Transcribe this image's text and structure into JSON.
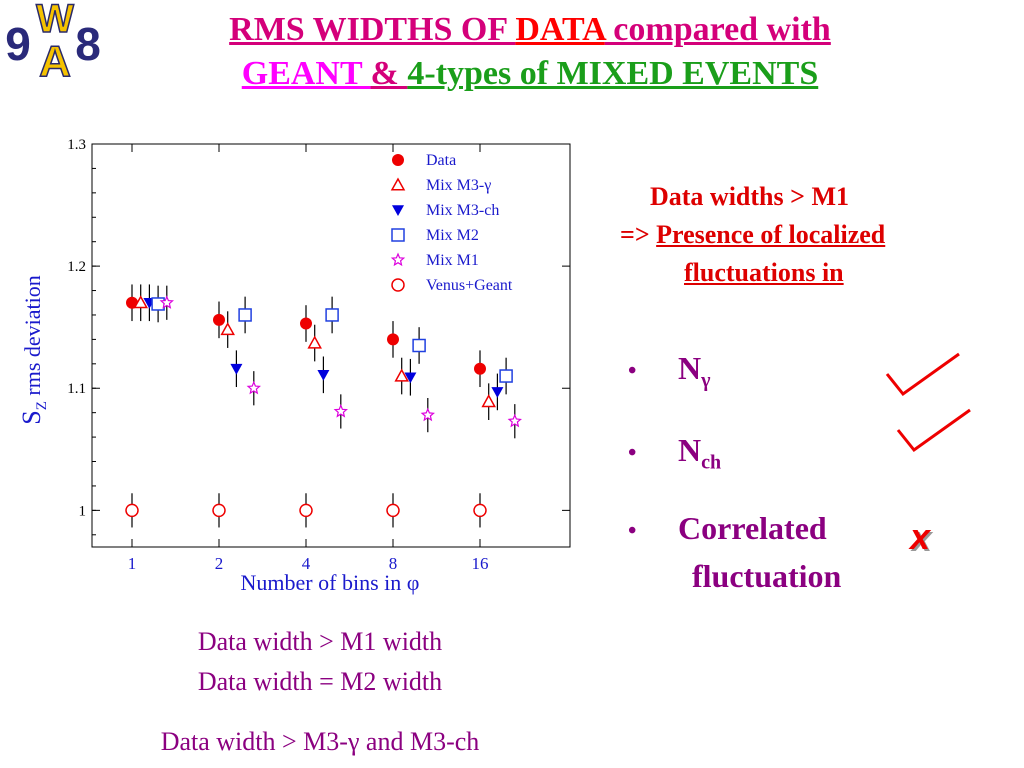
{
  "logo": {
    "letters": [
      "W",
      "9",
      "A",
      "8"
    ]
  },
  "title": {
    "line1": [
      {
        "text": "RMS WIDTHS  OF ",
        "color": "#d4007a"
      },
      {
        "text": "DATA",
        "color": "#ff0000"
      },
      {
        "text": " compared with",
        "color": "#d4007a"
      }
    ],
    "line2": [
      {
        "text": "GEANT ",
        "color": "#ff00ff"
      },
      {
        "text": "& ",
        "color": "#d4007a"
      },
      {
        "text": "4-types of MIXED EVENTS",
        "color": "#1a9e1a"
      }
    ]
  },
  "chart_data": {
    "type": "scatter",
    "categories": [
      "1",
      "2",
      "4",
      "8",
      "16"
    ],
    "ylabel_main": "S",
    "ylabel_sub": "Z",
    "ylabel_rest": " rms deviation",
    "xlabel": "Number of bins in  φ",
    "ylim": [
      0.97,
      1.3
    ],
    "yticks": [
      1,
      1.1,
      1.2,
      1.3
    ],
    "ytick_labels": [
      "1",
      "1.1",
      "1.2",
      "1.3"
    ],
    "legend_position": "top-right",
    "series": [
      {
        "name": "Data",
        "marker": "filled-circle",
        "color": "#ee0000",
        "offset": 0.0,
        "values": [
          1.17,
          1.156,
          1.153,
          1.14,
          1.116
        ],
        "err": [
          0.015,
          0.015,
          0.015,
          0.015,
          0.015
        ]
      },
      {
        "name": "Mix M3-γ",
        "marker": "open-triangle-up",
        "color": "#ee0000",
        "offset": 0.1,
        "values": [
          1.17,
          1.148,
          1.137,
          1.11,
          1.089
        ],
        "err": [
          0.015,
          0.015,
          0.015,
          0.015,
          0.015
        ]
      },
      {
        "name": "Mix M3-ch",
        "marker": "filled-triangle-down",
        "color": "#0000dd",
        "offset": 0.2,
        "values": [
          1.17,
          1.116,
          1.111,
          1.109,
          1.097
        ],
        "err": [
          0.015,
          0.015,
          0.015,
          0.015,
          0.015
        ]
      },
      {
        "name": "Mix M2",
        "marker": "open-square",
        "color": "#2040e0",
        "offset": 0.3,
        "values": [
          1.169,
          1.16,
          1.16,
          1.135,
          1.11
        ],
        "err": [
          0.015,
          0.015,
          0.015,
          0.015,
          0.015
        ]
      },
      {
        "name": "Mix M1",
        "marker": "open-star",
        "color": "#dd00dd",
        "offset": 0.4,
        "values": [
          1.17,
          1.1,
          1.081,
          1.078,
          1.073
        ],
        "err": [
          0.014,
          0.014,
          0.014,
          0.014,
          0.014
        ]
      },
      {
        "name": "Venus+Geant",
        "marker": "open-circle",
        "color": "#ee0000",
        "offset": 0.0,
        "values": [
          1.0,
          1.0,
          1.0,
          1.0,
          1.0
        ],
        "err": [
          0.014,
          0.014,
          0.014,
          0.014,
          0.014
        ]
      }
    ]
  },
  "notes": {
    "line1": "Data widths > M1",
    "line2_prefix": "=> ",
    "line2_link": "Presence of localized",
    "line3_link": "fluctuations in"
  },
  "bullets": {
    "items": [
      {
        "dot": "•",
        "main": "N",
        "sub": "γ",
        "mark": "check"
      },
      {
        "dot": "•",
        "main": "N",
        "sub": "ch",
        "mark": "check"
      },
      {
        "dot": "•",
        "main": "Correlated",
        "line2": "fluctuation",
        "mark": "x"
      }
    ],
    "x_mark": "x",
    "check_color": "#ee0000",
    "x_color": "#ee0000"
  },
  "bottom": {
    "line1": "Data width > M1 width",
    "line2": "Data width = M2 width",
    "line3": "Data width > M3-γ  and M3-ch"
  }
}
